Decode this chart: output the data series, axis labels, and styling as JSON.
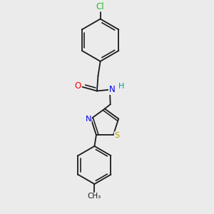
{
  "background_color": "#ebebeb",
  "bond_color": "#1a1a1a",
  "figsize": [
    3.0,
    3.0
  ],
  "dpi": 100,
  "atoms": {
    "Cl": {
      "color": "#2db52d",
      "fontsize": 8.5
    },
    "O": {
      "color": "#ff0000",
      "fontsize": 8.5
    },
    "N": {
      "color": "#0000ee",
      "fontsize": 8.5
    },
    "H": {
      "color": "#009999",
      "fontsize": 8.0
    },
    "S": {
      "color": "#b8a000",
      "fontsize": 8.5
    },
    "CH3": {
      "color": "#1a1a1a",
      "fontsize": 7.5
    }
  },
  "line_width": 1.3
}
